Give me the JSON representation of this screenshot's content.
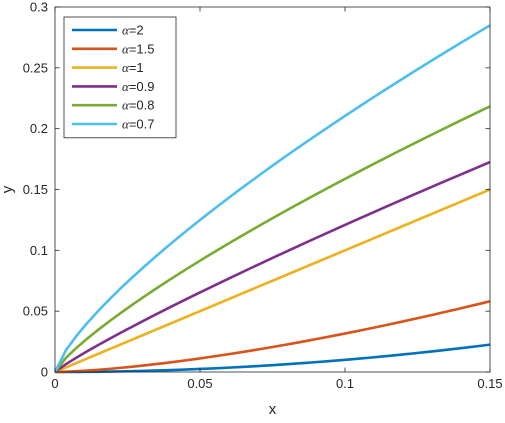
{
  "chart_data": {
    "type": "line",
    "title": "",
    "xlabel": "x",
    "ylabel": "y",
    "xlim": [
      0,
      0.15
    ],
    "ylim": [
      0,
      0.3
    ],
    "xticks": [
      0,
      0.05,
      0.1,
      0.15
    ],
    "xtick_labels": [
      "0",
      "0.05",
      "0.1",
      "0.15"
    ],
    "yticks": [
      0,
      0.05,
      0.1,
      0.15,
      0.2,
      0.25,
      0.3
    ],
    "ytick_labels": [
      "0",
      "0.05",
      "0.1",
      "0.15",
      "0.2",
      "0.25",
      "0.3"
    ],
    "grid": false,
    "legend_position": "top-left",
    "x": [
      0,
      0.00375,
      0.0075,
      0.01125,
      0.015,
      0.01875,
      0.0225,
      0.02625,
      0.03,
      0.03375,
      0.0375,
      0.04125,
      0.045,
      0.04875,
      0.0525,
      0.05625,
      0.06,
      0.06375,
      0.0675,
      0.07125,
      0.075,
      0.07875,
      0.0825,
      0.08625,
      0.09,
      0.09375,
      0.0975,
      0.10125,
      0.105,
      0.10875,
      0.1125,
      0.11625,
      0.12,
      0.12375,
      0.1275,
      0.13125,
      0.135,
      0.13875,
      0.1425,
      0.14625,
      0.15
    ],
    "series": [
      {
        "name": "α=2",
        "color": "#0072BD",
        "values": [
          0,
          1e-05,
          6e-05,
          0.00013,
          0.00023,
          0.00035,
          0.00051,
          0.00069,
          0.0009,
          0.00114,
          0.00141,
          0.0017,
          0.00203,
          0.00238,
          0.00276,
          0.00316,
          0.0036,
          0.00406,
          0.00456,
          0.00508,
          0.00563,
          0.0062,
          0.00681,
          0.00744,
          0.0081,
          0.00879,
          0.00951,
          0.01025,
          0.01103,
          0.01183,
          0.01266,
          0.01351,
          0.0144,
          0.01531,
          0.01626,
          0.01723,
          0.01823,
          0.01925,
          0.02031,
          0.02139,
          0.0225
        ]
      },
      {
        "name": "α=1.5",
        "color": "#D95319",
        "values": [
          0,
          0.00023,
          0.00065,
          0.00119,
          0.00184,
          0.00257,
          0.00338,
          0.00425,
          0.0052,
          0.0062,
          0.00726,
          0.00838,
          0.00955,
          0.01076,
          0.01203,
          0.01334,
          0.0147,
          0.0161,
          0.01754,
          0.01902,
          0.02054,
          0.0221,
          0.0237,
          0.02533,
          0.027,
          0.0287,
          0.03044,
          0.03221,
          0.03402,
          0.03586,
          0.03773,
          0.03963,
          0.04157,
          0.04353,
          0.04553,
          0.04755,
          0.0496,
          0.05169,
          0.0538,
          0.05594,
          0.05811
        ]
      },
      {
        "name": "α=1",
        "color": "#EDB120",
        "values": [
          0,
          0.00375,
          0.0075,
          0.01125,
          0.015,
          0.01875,
          0.0225,
          0.02625,
          0.03,
          0.03375,
          0.0375,
          0.04125,
          0.045,
          0.04875,
          0.0525,
          0.05625,
          0.06,
          0.06375,
          0.0675,
          0.07125,
          0.075,
          0.07875,
          0.0825,
          0.08625,
          0.09,
          0.09375,
          0.0975,
          0.10125,
          0.105,
          0.10875,
          0.1125,
          0.11625,
          0.12,
          0.12375,
          0.1275,
          0.13125,
          0.135,
          0.13875,
          0.1425,
          0.14625,
          0.15
        ]
      },
      {
        "name": "α=0.9",
        "color": "#7E2F8E",
        "values": [
          0,
          0.00642,
          0.01197,
          0.01723,
          0.0223,
          0.02723,
          0.03206,
          0.0368,
          0.04146,
          0.04606,
          0.0506,
          0.05509,
          0.05953,
          0.06393,
          0.06829,
          0.07261,
          0.07689,
          0.08115,
          0.08537,
          0.08956,
          0.09373,
          0.09787,
          0.10198,
          0.10607,
          0.11014,
          0.11418,
          0.1182,
          0.1222,
          0.12618,
          0.13014,
          0.13408,
          0.138,
          0.1419,
          0.14579,
          0.14966,
          0.15351,
          0.15734,
          0.16116,
          0.16497,
          0.16876,
          0.17253
        ]
      },
      {
        "name": "α=0.8",
        "color": "#77AC30",
        "values": [
          0,
          0.01152,
          0.02005,
          0.02771,
          0.03488,
          0.04171,
          0.04826,
          0.05461,
          0.06078,
          0.06679,
          0.07267,
          0.07843,
          0.08409,
          0.08964,
          0.09511,
          0.1005,
          0.10581,
          0.11105,
          0.11622,
          0.12133,
          0.12638,
          0.13137,
          0.13631,
          0.1412,
          0.14604,
          0.15083,
          0.15559,
          0.1603,
          0.16497,
          0.1696,
          0.17419,
          0.17875,
          0.18327,
          0.18776,
          0.19222,
          0.19664,
          0.20104,
          0.2054,
          0.20974,
          0.21404,
          0.21832
        ]
      },
      {
        "name": "α=0.7",
        "color": "#4DBEEE",
        "values": [
          0,
          0.01784,
          0.03,
          0.04063,
          0.05044,
          0.05966,
          0.06843,
          0.07685,
          0.08498,
          0.09287,
          0.10056,
          0.10805,
          0.11538,
          0.12256,
          0.12961,
          0.13653,
          0.14333,
          0.15003,
          0.15664,
          0.16315,
          0.16957,
          0.17591,
          0.18217,
          0.18836,
          0.19447,
          0.20053,
          0.20651,
          0.21244,
          0.21831,
          0.22413,
          0.22989,
          0.2356,
          0.24126,
          0.24687,
          0.25244,
          0.25796,
          0.26343,
          0.26886,
          0.27425,
          0.2796,
          0.28491
        ]
      }
    ]
  }
}
